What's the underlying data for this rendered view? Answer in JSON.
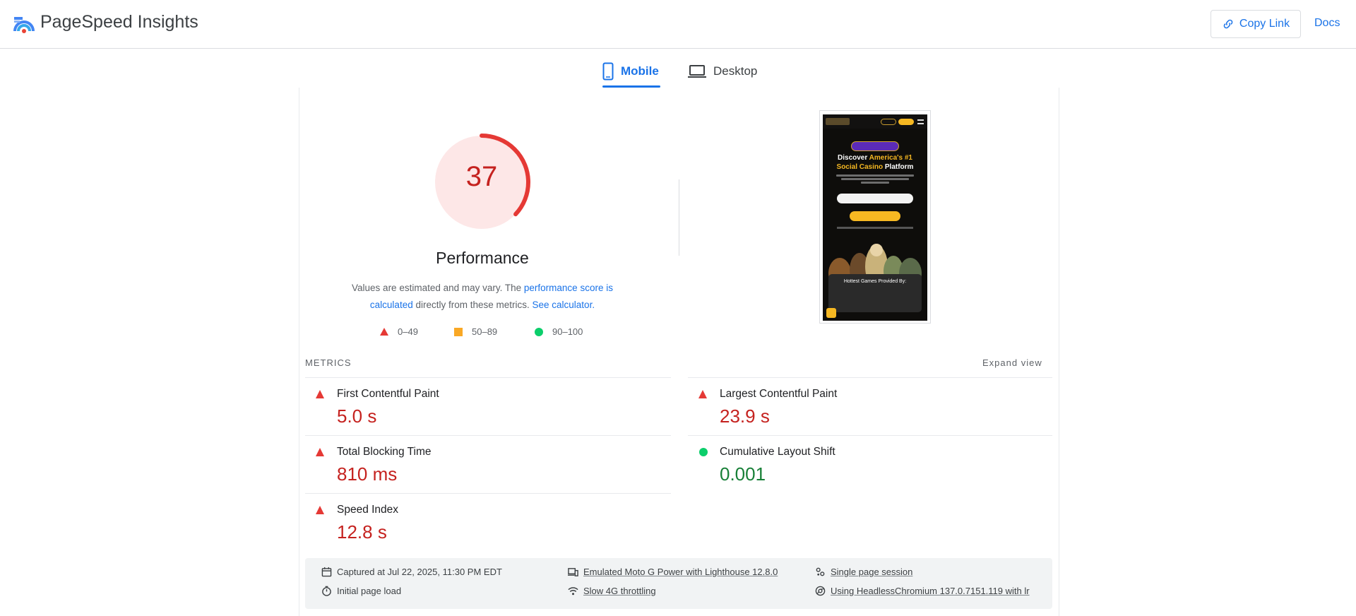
{
  "header": {
    "title": "PageSpeed Insights",
    "copy_link": "Copy Link",
    "docs": "Docs"
  },
  "tabs": [
    {
      "label": "Mobile",
      "active": true,
      "icon": "phone-icon"
    },
    {
      "label": "Desktop",
      "active": false,
      "icon": "laptop-icon"
    }
  ],
  "performance": {
    "score": "37",
    "score_fraction": 0.37,
    "title": "Performance",
    "desc_prefix": "Values are estimated and may vary. The ",
    "desc_link1": "performance score is calculated",
    "desc_middle": " directly from these metrics. ",
    "desc_link2": "See calculator.",
    "colors": {
      "fail": "#e53935",
      "average": "#f9a825",
      "pass": "#0cce6b",
      "fail_text": "#c5221f",
      "pass_text": "#188038"
    }
  },
  "legend": [
    {
      "range": "0–49",
      "icon": "fail-triangle-icon"
    },
    {
      "range": "50–89",
      "icon": "average-square-icon"
    },
    {
      "range": "90–100",
      "icon": "pass-circle-icon"
    }
  ],
  "screenshot": {
    "headline_1": "Discover ",
    "headline_1_accent": "America's #1",
    "headline_2_accent": "Social Casino",
    "headline_2": " Platform",
    "box_title": "Hottest Games Provided By:"
  },
  "metrics": {
    "label": "METRICS",
    "expand": "Expand view",
    "items": [
      {
        "name": "First Contentful Paint",
        "value": "5.0 s",
        "status": "fail"
      },
      {
        "name": "Largest Contentful Paint",
        "value": "23.9 s",
        "status": "fail"
      },
      {
        "name": "Total Blocking Time",
        "value": "810 ms",
        "status": "fail"
      },
      {
        "name": "Cumulative Layout Shift",
        "value": "0.001",
        "status": "pass"
      },
      {
        "name": "Speed Index",
        "value": "12.8 s",
        "status": "fail"
      }
    ]
  },
  "runtime": {
    "captured": "Captured at Jul 22, 2025, 11:30 PM EDT",
    "initial_load": "Initial page load",
    "device": "Emulated Moto G Power with Lighthouse 12.8.0",
    "throttling": "Slow 4G throttling",
    "session": "Single page session",
    "browser": "Using HeadlessChromium 137.0.7151.119 with lr"
  }
}
